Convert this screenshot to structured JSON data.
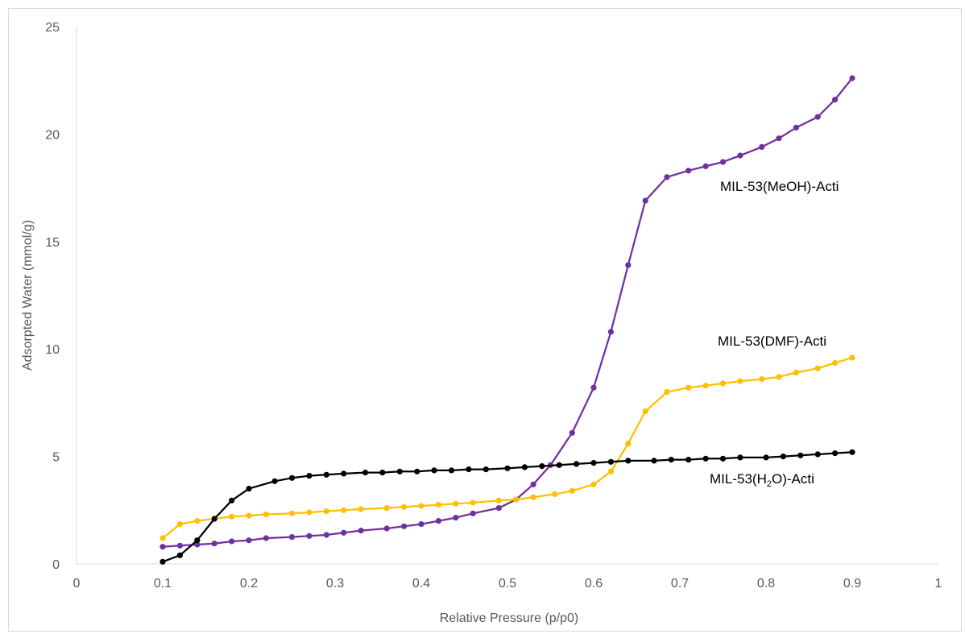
{
  "chart_data": {
    "type": "line",
    "xlabel": "Relative Pressure (p/p0)",
    "ylabel": "Adsorpted Water (mmol/g)",
    "xlim": [
      0,
      1
    ],
    "ylim": [
      0,
      25
    ],
    "x_ticks": [
      "0",
      "0.1",
      "0.2",
      "0.3",
      "0.4",
      "0.5",
      "0.6",
      "0.7",
      "0.8",
      "0.9",
      "1"
    ],
    "y_ticks": [
      "0",
      "5",
      "10",
      "15",
      "20",
      "25"
    ],
    "grid": false,
    "legend": "none",
    "series": [
      {
        "label_parts": [
          "MIL-53(MeOH)-Acti"
        ],
        "color": "#7030A0",
        "x": [
          0.1,
          0.12,
          0.14,
          0.16,
          0.18,
          0.2,
          0.22,
          0.25,
          0.27,
          0.29,
          0.31,
          0.33,
          0.36,
          0.38,
          0.4,
          0.42,
          0.44,
          0.46,
          0.49,
          0.51,
          0.53,
          0.55,
          0.575,
          0.6,
          0.62,
          0.64,
          0.66,
          0.685,
          0.71,
          0.73,
          0.75,
          0.77,
          0.795,
          0.815,
          0.835,
          0.86,
          0.88,
          0.9
        ],
        "y": [
          0.8,
          0.85,
          0.9,
          0.95,
          1.05,
          1.1,
          1.2,
          1.25,
          1.3,
          1.35,
          1.45,
          1.55,
          1.65,
          1.75,
          1.85,
          2.0,
          2.15,
          2.35,
          2.6,
          3.0,
          3.7,
          4.6,
          6.1,
          8.2,
          10.8,
          13.9,
          16.9,
          18.0,
          18.3,
          18.5,
          18.7,
          19.0,
          19.4,
          19.8,
          20.3,
          20.8,
          21.6,
          22.6
        ]
      },
      {
        "label_parts": [
          "MIL-53(DMF)-Acti"
        ],
        "color": "#FFC000",
        "x": [
          0.1,
          0.12,
          0.14,
          0.16,
          0.18,
          0.2,
          0.22,
          0.25,
          0.27,
          0.29,
          0.31,
          0.33,
          0.36,
          0.38,
          0.4,
          0.42,
          0.44,
          0.46,
          0.49,
          0.51,
          0.53,
          0.555,
          0.575,
          0.6,
          0.62,
          0.64,
          0.66,
          0.685,
          0.71,
          0.73,
          0.75,
          0.77,
          0.795,
          0.815,
          0.835,
          0.86,
          0.88,
          0.9
        ],
        "y": [
          1.2,
          1.85,
          2.0,
          2.1,
          2.2,
          2.25,
          2.3,
          2.35,
          2.4,
          2.45,
          2.5,
          2.55,
          2.6,
          2.65,
          2.7,
          2.75,
          2.8,
          2.85,
          2.95,
          3.0,
          3.1,
          3.25,
          3.4,
          3.7,
          4.3,
          5.6,
          7.1,
          8.0,
          8.2,
          8.3,
          8.4,
          8.5,
          8.6,
          8.7,
          8.9,
          9.1,
          9.35,
          9.6
        ]
      },
      {
        "label_parts": [
          "MIL-53(H",
          "2",
          "O)-Acti"
        ],
        "color": "#000000",
        "x": [
          0.1,
          0.12,
          0.14,
          0.16,
          0.18,
          0.2,
          0.23,
          0.25,
          0.27,
          0.29,
          0.31,
          0.335,
          0.355,
          0.375,
          0.395,
          0.415,
          0.435,
          0.455,
          0.475,
          0.5,
          0.52,
          0.54,
          0.56,
          0.58,
          0.6,
          0.62,
          0.64,
          0.67,
          0.69,
          0.71,
          0.73,
          0.75,
          0.77,
          0.8,
          0.82,
          0.84,
          0.86,
          0.88,
          0.9
        ],
        "y": [
          0.1,
          0.4,
          1.1,
          2.1,
          2.95,
          3.5,
          3.85,
          4.0,
          4.1,
          4.15,
          4.2,
          4.25,
          4.25,
          4.3,
          4.3,
          4.35,
          4.35,
          4.4,
          4.4,
          4.45,
          4.5,
          4.55,
          4.6,
          4.65,
          4.7,
          4.75,
          4.8,
          4.8,
          4.85,
          4.85,
          4.9,
          4.9,
          4.95,
          4.95,
          5.0,
          5.05,
          5.1,
          5.15,
          5.2
        ]
      }
    ]
  }
}
